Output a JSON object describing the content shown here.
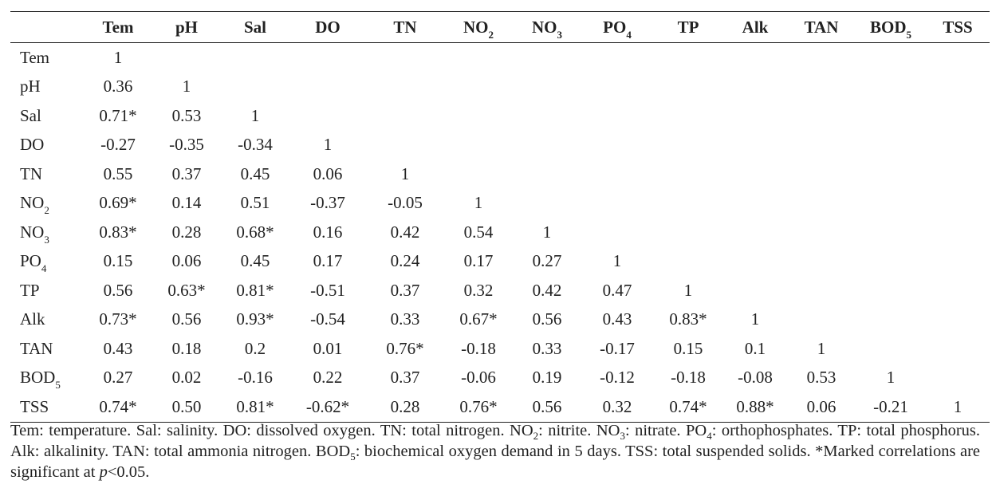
{
  "table": {
    "columns": [
      {
        "base": "",
        "sub": ""
      },
      {
        "base": "Tem",
        "sub": ""
      },
      {
        "base": "pH",
        "sub": ""
      },
      {
        "base": "Sal",
        "sub": ""
      },
      {
        "base": "DO",
        "sub": ""
      },
      {
        "base": "TN",
        "sub": ""
      },
      {
        "base": "NO",
        "sub": "2"
      },
      {
        "base": "NO",
        "sub": "3"
      },
      {
        "base": "PO",
        "sub": "4"
      },
      {
        "base": "TP",
        "sub": ""
      },
      {
        "base": "Alk",
        "sub": ""
      },
      {
        "base": "TAN",
        "sub": ""
      },
      {
        "base": "BOD",
        "sub": "5"
      },
      {
        "base": "TSS",
        "sub": ""
      }
    ],
    "rows": [
      {
        "label": "Tem",
        "sub": "",
        "values": [
          "1"
        ]
      },
      {
        "label": "pH",
        "sub": "",
        "values": [
          "0.36",
          "1"
        ]
      },
      {
        "label": "Sal",
        "sub": "",
        "values": [
          "0.71*",
          "0.53",
          "1"
        ]
      },
      {
        "label": "DO",
        "sub": "",
        "values": [
          "-0.27",
          "-0.35",
          "-0.34",
          "1"
        ]
      },
      {
        "label": "TN",
        "sub": "",
        "values": [
          "0.55",
          "0.37",
          "0.45",
          "0.06",
          "1"
        ]
      },
      {
        "label": "NO",
        "sub": "2",
        "values": [
          "0.69*",
          "0.14",
          "0.51",
          "-0.37",
          "-0.05",
          "1"
        ]
      },
      {
        "label": "NO",
        "sub": "3",
        "values": [
          "0.83*",
          "0.28",
          "0.68*",
          "0.16",
          "0.42",
          "0.54",
          "1"
        ]
      },
      {
        "label": "PO",
        "sub": "4",
        "values": [
          "0.15",
          "0.06",
          "0.45",
          "0.17",
          "0.24",
          "0.17",
          "0.27",
          "1"
        ]
      },
      {
        "label": "TP",
        "sub": "",
        "values": [
          "0.56",
          "0.63*",
          "0.81*",
          "-0.51",
          "0.37",
          "0.32",
          "0.42",
          "0.47",
          "1"
        ]
      },
      {
        "label": "Alk",
        "sub": "",
        "values": [
          "0.73*",
          "0.56",
          "0.93*",
          "-0.54",
          "0.33",
          "0.67*",
          "0.56",
          "0.43",
          "0.83*",
          "1"
        ]
      },
      {
        "label": "TAN",
        "sub": "",
        "values": [
          "0.43",
          "0.18",
          "0.2",
          "0.01",
          "0.76*",
          "-0.18",
          "0.33",
          "-0.17",
          "0.15",
          "0.1",
          "1"
        ]
      },
      {
        "label": "BOD",
        "sub": "5",
        "values": [
          "0.27",
          "0.02",
          "-0.16",
          "0.22",
          "0.37",
          "-0.06",
          "0.19",
          "-0.12",
          "-0.18",
          "-0.08",
          "0.53",
          "1"
        ]
      },
      {
        "label": "TSS",
        "sub": "",
        "values": [
          "0.74*",
          "0.50",
          "0.81*",
          "-0.62*",
          "0.28",
          "0.76*",
          "0.56",
          "0.32",
          "0.74*",
          "0.88*",
          "0.06",
          "-0.21",
          "1"
        ]
      }
    ]
  },
  "footnote": {
    "seg1": "Tem: temperature. Sal: salinity. DO: dissolved oxygen. TN: total nitrogen. NO",
    "sub1": "2",
    "seg2": ": nitrite. NO",
    "sub2": "3",
    "seg3": ": nitrate. PO",
    "sub3": "4",
    "seg4": ": orthophosphates. TP: total phosphorus. Alk: alkalinity. TAN: total ammonia nitrogen. BOD",
    "sub4": "5",
    "seg5": ": biochemical oxygen demand in 5 days. TSS: total suspended solids. *Marked correlations are significant at ",
    "italic": "p",
    "seg6": "<0.05."
  }
}
